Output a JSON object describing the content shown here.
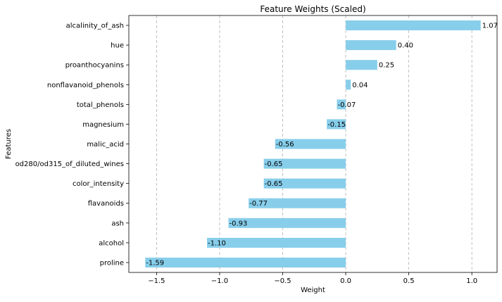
{
  "chart_data": {
    "type": "bar",
    "orientation": "horizontal",
    "title": "Feature Weights (Scaled)",
    "xlabel": "Weight",
    "ylabel": "Features",
    "xlim": [
      -1.72,
      1.2
    ],
    "xticks": [
      -1.5,
      -1.0,
      -0.5,
      0.0,
      0.5,
      1.0
    ],
    "xtick_labels": [
      "−1.5",
      "−1.0",
      "−0.5",
      "0.0",
      "0.5",
      "1.0"
    ],
    "grid": "x",
    "bar_color": "#87ceeb",
    "categories": [
      "alcalinity_of_ash",
      "hue",
      "proanthocyanins",
      "nonflavanoid_phenols",
      "total_phenols",
      "magnesium",
      "malic_acid",
      "od280/od315_of_diluted_wines",
      "color_intensity",
      "flavanoids",
      "ash",
      "alcohol",
      "proline"
    ],
    "values": [
      1.07,
      0.4,
      0.25,
      0.04,
      -0.07,
      -0.15,
      -0.56,
      -0.65,
      -0.65,
      -0.77,
      -0.93,
      -1.1,
      -1.59
    ],
    "value_labels": [
      "1.07",
      "0.40",
      "0.25",
      "0.04",
      "-0.07",
      "-0.15",
      "-0.56",
      "-0.65",
      "-0.65",
      "-0.77",
      "-0.93",
      "-1.10",
      "-1.59"
    ]
  }
}
